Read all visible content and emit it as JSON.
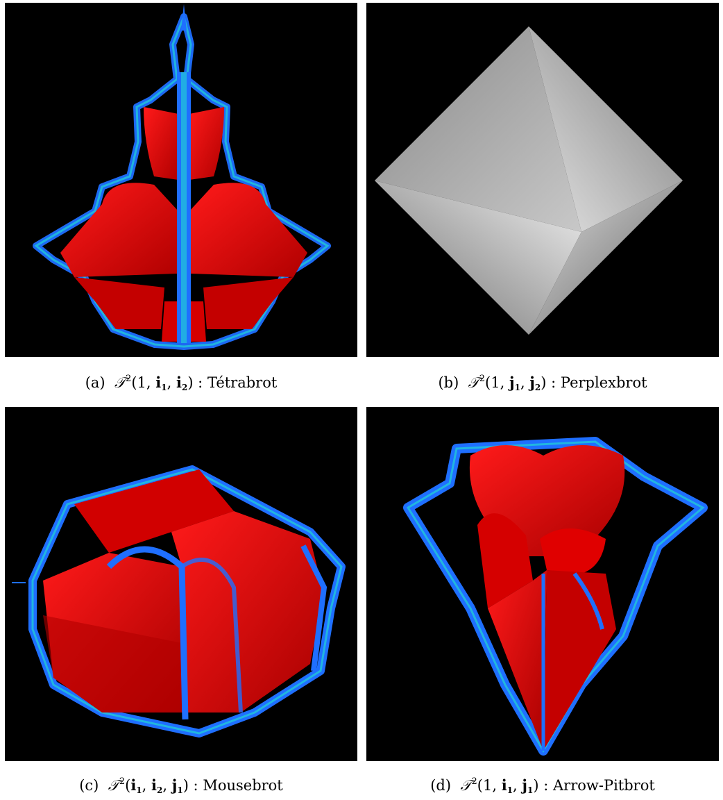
{
  "figures": [
    {
      "id": "a",
      "label": "(a)",
      "operator": "𝒯",
      "power": "2",
      "args": [
        "1",
        "i",
        "1",
        "i",
        "2"
      ],
      "name": "Tétrabrot"
    },
    {
      "id": "b",
      "label": "(b)",
      "operator": "𝒯",
      "power": "2",
      "args": [
        "1",
        "j",
        "1",
        "j",
        "2"
      ],
      "name": "Perplexbrot"
    },
    {
      "id": "c",
      "label": "(c)",
      "operator": "𝒯",
      "power": "2",
      "args": [
        "i",
        "1",
        "i",
        "2",
        "j",
        "1"
      ],
      "name": "Mousebrot"
    },
    {
      "id": "d",
      "label": "(d)",
      "operator": "𝒯",
      "power": "2",
      "args": [
        "1",
        "i",
        "1",
        "j",
        "1"
      ],
      "name": "Arrow-Pitbrot"
    }
  ],
  "colors": {
    "background": "#000000",
    "fractal_red": "#e00000",
    "fractal_blue": "#1f6fff",
    "fractal_cyan": "#22c8d8",
    "fractal_green": "#33cc66",
    "octahedron_light": "#f2f2f2",
    "octahedron_dark": "#6a6a6a"
  }
}
